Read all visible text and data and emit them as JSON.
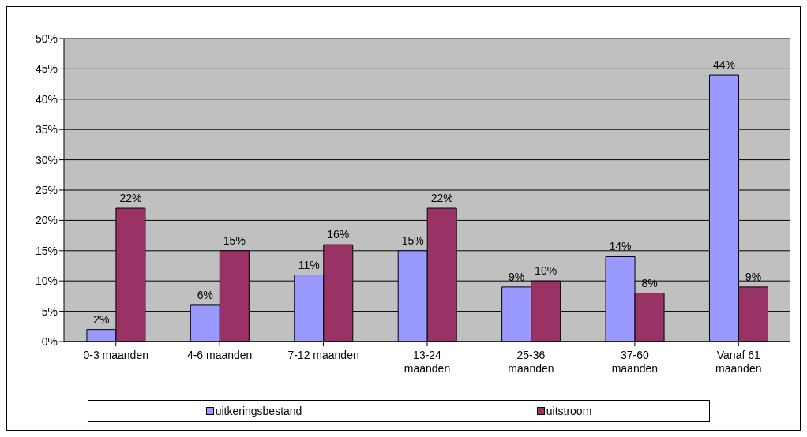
{
  "chart_data": {
    "type": "bar",
    "categories": [
      "0-3 maanden",
      "4-6 maanden",
      "7-12 maanden",
      "13-24 maanden",
      "25-36 maanden",
      "37-60 maanden",
      "Vanaf 61 maanden"
    ],
    "series": [
      {
        "name": "uitkeringsbestand",
        "color": "#9999ff",
        "values": [
          2,
          6,
          11,
          15,
          9,
          14,
          44
        ],
        "value_labels": [
          "2%",
          "6%",
          "11%",
          "15%",
          "9%",
          "14%",
          "44%"
        ]
      },
      {
        "name": "uitstroom",
        "color": "#993366",
        "values": [
          22,
          15,
          16,
          22,
          10,
          8,
          9
        ],
        "value_labels": [
          "22%",
          "15%",
          "16%",
          "22%",
          "10%",
          "8%",
          "9%"
        ]
      }
    ],
    "ylim": [
      0,
      50
    ],
    "yticks": [
      {
        "value": 0,
        "label": "0%"
      },
      {
        "value": 5,
        "label": "5%"
      },
      {
        "value": 10,
        "label": "10%"
      },
      {
        "value": 15,
        "label": "15%"
      },
      {
        "value": 20,
        "label": "20%"
      },
      {
        "value": 25,
        "label": "25%"
      },
      {
        "value": 30,
        "label": "30%"
      },
      {
        "value": 35,
        "label": "35%"
      },
      {
        "value": 40,
        "label": "40%"
      },
      {
        "value": 45,
        "label": "45%"
      },
      {
        "value": 50,
        "label": "50%"
      }
    ],
    "grid": "y",
    "legend": "bottom"
  }
}
